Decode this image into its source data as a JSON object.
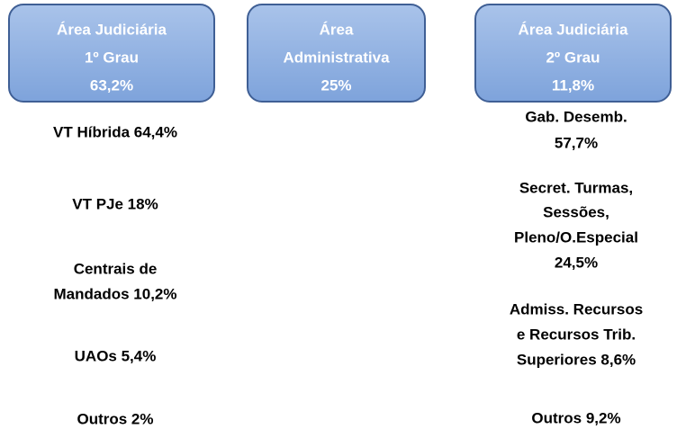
{
  "boxes": [
    {
      "lines": [
        "Área Judiciária",
        "1º Grau",
        "63,2%"
      ]
    },
    {
      "lines": [
        "Área",
        "Administrativa",
        "25%"
      ]
    },
    {
      "lines": [
        "Área Judiciária",
        "2º Grau",
        "11,8%"
      ]
    }
  ],
  "left_items": [
    {
      "lines": [
        "VT Híbrida  64,4%"
      ]
    },
    {
      "lines": [
        "VT PJe  18%"
      ]
    },
    {
      "lines": [
        "Centrais de",
        "Mandados  10,2%"
      ]
    },
    {
      "lines": [
        "UAOs  5,4%"
      ]
    },
    {
      "lines": [
        "Outros  2%"
      ]
    }
  ],
  "right_items": [
    {
      "lines": [
        "Gab. Desemb.",
        "57,7%"
      ]
    },
    {
      "lines": [
        "Secret. Turmas,",
        "Sessões,",
        "Pleno/O.Especial",
        "24,5%"
      ]
    },
    {
      "lines": [
        "Admiss. Recursos",
        "e Recursos Trib.",
        "Superiores  8,6%"
      ]
    },
    {
      "lines": [
        "Outros  9,2%"
      ]
    }
  ]
}
